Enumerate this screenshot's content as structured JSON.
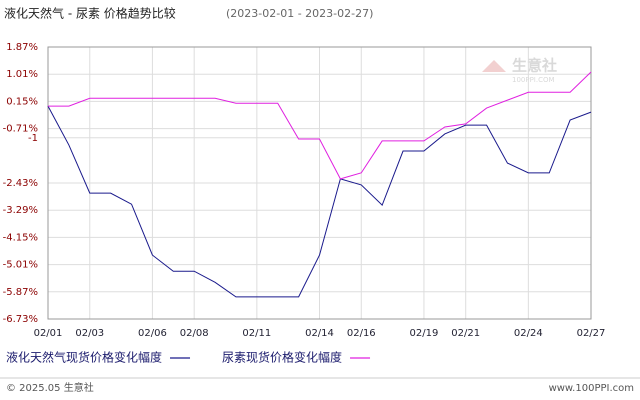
{
  "chart_data": {
    "type": "line",
    "title": "液化天然气 - 尿素 价格趋势比较",
    "subtitle": "(2023-02-01 - 2023-02-27)",
    "watermark": "生意社",
    "watermark_sub": "100PPI.COM",
    "footer_left": "© 2025.05 生意社",
    "footer_right": "www.100PPI.com",
    "categories": [
      "02/01",
      null,
      "02/03",
      null,
      null,
      "02/06",
      null,
      "02/08",
      null,
      null,
      "02/11",
      null,
      null,
      "02/14",
      null,
      "02/16",
      null,
      null,
      "02/19",
      null,
      "02/21",
      null,
      null,
      "02/24",
      null,
      null,
      "02/27"
    ],
    "series": [
      {
        "name": "液化天然气现货价格变化幅度",
        "color": "#1a1a8c",
        "values": [
          0,
          -1.23,
          -2.75,
          -2.75,
          -3.1,
          -4.71,
          -5.22,
          -5.22,
          -5.57,
          -6.03,
          -6.03,
          -6.03,
          -6.03,
          -4.71,
          -2.3,
          -2.49,
          -3.13,
          -1.42,
          -1.42,
          -0.88,
          -0.6,
          -0.6,
          -1.8,
          -2.11,
          -2.11,
          -0.44,
          -0.19
        ]
      },
      {
        "name": "尿素现货价格变化幅度",
        "color": "#e020e0",
        "values": [
          0,
          0,
          0.25,
          0.25,
          0.25,
          0.25,
          0.25,
          0.25,
          0.25,
          0.09,
          0.09,
          0.09,
          -1.04,
          -1.04,
          -2.3,
          -2.11,
          -1.1,
          -1.1,
          -1.1,
          -0.66,
          -0.56,
          -0.06,
          0.19,
          0.44,
          0.44,
          0.44,
          1.08
        ]
      }
    ],
    "ylim": [
      -6.73,
      1.87
    ],
    "yticks": [
      {
        "value": 1.87,
        "label": "1.87%"
      },
      {
        "value": 1.01,
        "label": "1.01%"
      },
      {
        "value": 0.15,
        "label": "0.15%"
      },
      {
        "value": -0.71,
        "label": "-0.71%"
      },
      -1,
      {
        "value": -2.43,
        "label": "-2.43%"
      },
      {
        "value": -3.29,
        "label": "-3.29%"
      },
      {
        "value": -4.15,
        "label": "-4.15%"
      },
      {
        "value": -5.01,
        "label": "-5.01%"
      },
      {
        "value": -5.87,
        "label": "-5.87%"
      },
      {
        "value": -6.73,
        "label": "-6.73%"
      }
    ],
    "grid": true,
    "legend": "bottom"
  }
}
